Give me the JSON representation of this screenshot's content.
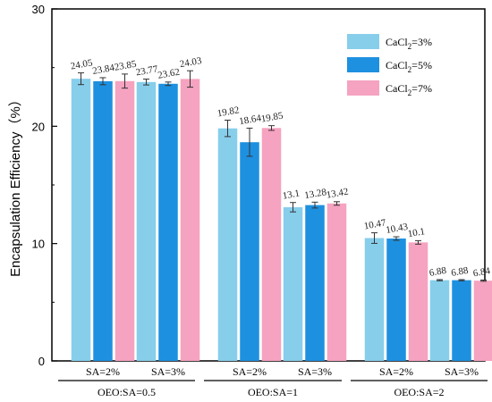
{
  "chart_data": {
    "type": "bar",
    "ylabel": "Encapsulation Efficiency（%）",
    "ylim": [
      0,
      30
    ],
    "yticks": [
      0,
      10,
      20,
      30
    ],
    "grid": false,
    "legend_position": "top-right",
    "groups": [
      "OEO:SA=0.5",
      "OEO:SA=1",
      "OEO:SA=2"
    ],
    "categories": [
      "SA=2%",
      "SA=3%",
      "SA=2%",
      "SA=3%",
      "SA=2%",
      "SA=3%"
    ],
    "category_group": [
      0,
      0,
      1,
      1,
      2,
      2
    ],
    "series": [
      {
        "name_main": "CaCl",
        "name_sub": "2",
        "name_suffix": "=3%",
        "color": "#87ceeb",
        "values": [
          24.05,
          23.77,
          19.82,
          13.1,
          10.47,
          6.88
        ],
        "value_labels": [
          "24.05",
          "23.77",
          "19.82",
          "13.1",
          "10.47",
          "6.88"
        ],
        "errors": [
          0.5,
          0.25,
          0.7,
          0.4,
          0.45,
          0.05
        ]
      },
      {
        "name_main": "CaCl",
        "name_sub": "2",
        "name_suffix": "=5%",
        "color": "#1e90e0",
        "values": [
          23.84,
          23.62,
          18.64,
          13.28,
          10.43,
          6.88
        ],
        "value_labels": [
          "23.84",
          "23.62",
          "18.64",
          "13.28",
          "10.43",
          "6.88"
        ],
        "errors": [
          0.3,
          0.15,
          1.2,
          0.25,
          0.15,
          0.05
        ]
      },
      {
        "name_main": "CaCl",
        "name_sub": "2",
        "name_suffix": "=7%",
        "color": "#f5a3c0",
        "values": [
          23.85,
          24.03,
          19.85,
          13.42,
          10.1,
          6.84
        ],
        "value_labels": [
          "23.85",
          "24.03",
          "19.85",
          "13.42",
          "10.1",
          "6.84"
        ],
        "errors": [
          0.6,
          0.7,
          0.2,
          0.15,
          0.15,
          0.05
        ]
      }
    ]
  }
}
